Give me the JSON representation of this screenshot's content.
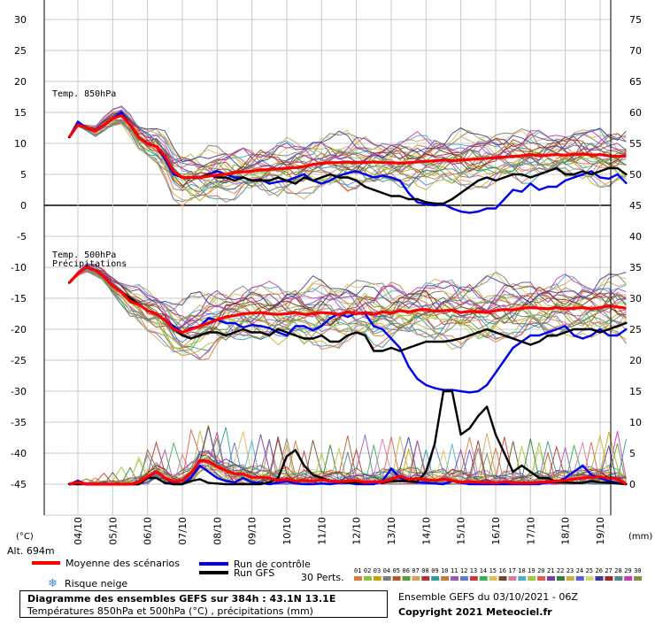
{
  "chart_data": {
    "type": "line",
    "title": "Diagramme des ensembles GEFS sur 384h : 43.1N 13.1E",
    "subtitle": "Températures 850hPa et 500hPa (°C) , précipitations (mm)",
    "run_label": "Ensemble GEFS du 03/10/2021 - 06Z",
    "copyright": "Copyright 2021 Meteociel.fr",
    "altitude": "Alt. 694m",
    "left_unit": "(°C)",
    "right_unit": "(mm)",
    "panel_labels": {
      "t850": "Temp. 850hPa",
      "t500": "Temp. 500hPa",
      "precip": "Précipitations"
    },
    "left_ticks": [
      30,
      25,
      20,
      15,
      10,
      5,
      0,
      -5,
      -10,
      -15,
      -20,
      -25,
      -30,
      -35,
      -40,
      -45
    ],
    "right_ticks": [
      75,
      70,
      65,
      60,
      55,
      50,
      45,
      40,
      35,
      30,
      25,
      20,
      15,
      10,
      5,
      0
    ],
    "x_categories": [
      "04/10",
      "05/10",
      "06/10",
      "07/10",
      "08/10",
      "09/10",
      "10/10",
      "11/10",
      "12/10",
      "13/10",
      "14/10",
      "15/10",
      "16/10",
      "17/10",
      "18/10",
      "19/10"
    ],
    "ylim_temp": [
      -45,
      30
    ],
    "ylim_precip_mm": [
      0,
      75
    ],
    "x_start_day": 3.75,
    "step_hours": 6,
    "legend": {
      "mean": "Moyenne des scénarios",
      "control": "Run de contrôle",
      "gfs": "Run GFS",
      "snow": "Risque neige",
      "perts": "30 Perts.",
      "pert_numbers": [
        "01",
        "02",
        "03",
        "04",
        "05",
        "06",
        "07",
        "08",
        "09",
        "10",
        "11",
        "12",
        "13",
        "14",
        "15",
        "16",
        "17",
        "18",
        "19",
        "20",
        "21",
        "22",
        "23",
        "24",
        "25",
        "26",
        "27",
        "28",
        "29",
        "30"
      ],
      "pert_colors": [
        "#e07a3c",
        "#8fbf3f",
        "#c8a400",
        "#7a7a7a",
        "#b05a2a",
        "#5a9b3a",
        "#d4a05a",
        "#b03030",
        "#2a9a9a",
        "#c87a3a",
        "#9a5ab0",
        "#5a7ad4",
        "#c83a3a",
        "#3ab05a",
        "#e0c050",
        "#6a4a2a",
        "#d47aa0",
        "#4ab0c8",
        "#a0c83a",
        "#e05a5a",
        "#7a3a9a",
        "#3a7a3a",
        "#c8b03a",
        "#5a5ad4",
        "#d4d47a",
        "#3a3a9a",
        "#9a2a2a",
        "#4a8a8a",
        "#c83ab0",
        "#8a8a4a"
      ]
    },
    "series": [
      {
        "name": "Moyenne des scénarios",
        "role": "mean",
        "color": "#ff0000",
        "t850": [
          11,
          13,
          12.5,
          12,
          13,
          14,
          14.5,
          13,
          11,
          10,
          9.5,
          8,
          5.5,
          4.5,
          4.5,
          4.5,
          4.7,
          4.9,
          5,
          5.3,
          5.4,
          5.5,
          5.7,
          5.8,
          5.9,
          6,
          6.1,
          6.3,
          6.6,
          6.8,
          6.9,
          6.9,
          7,
          6.9,
          6.9,
          7,
          6.9,
          6.9,
          6.8,
          6.9,
          7,
          7.1,
          7.2,
          7.3,
          7.2,
          7.3,
          7.4,
          7.5,
          7.6,
          7.7,
          7.8,
          7.9,
          8,
          8.2,
          8,
          8.1,
          8.2,
          8.1,
          8.2,
          8.3,
          8.1,
          8.2,
          8,
          7.9,
          8
        ],
        "t500": [
          -12.5,
          -11,
          -10,
          -10.5,
          -11.5,
          -13,
          -14,
          -15.5,
          -16,
          -17,
          -17.5,
          -18.5,
          -20,
          -20.5,
          -20,
          -19.5,
          -19,
          -18.5,
          -18,
          -17.8,
          -17.5,
          -17.4,
          -17.3,
          -17.5,
          -17.6,
          -17.5,
          -17.3,
          -17.6,
          -17.5,
          -17.3,
          -17.4,
          -17.6,
          -17.2,
          -17.5,
          -17.3,
          -17.6,
          -17.2,
          -17.4,
          -17,
          -17.2,
          -16.9,
          -16.8,
          -17.1,
          -17,
          -16.9,
          -17.3,
          -17.1,
          -17.2,
          -17.3,
          -17,
          -16.8,
          -16.9,
          -16.6,
          -16.5,
          -16.6,
          -16.7,
          -16.5,
          -16.7,
          -16.6,
          -16.5,
          -16.7,
          -16.5,
          -16.2,
          -16.4,
          -16.6
        ],
        "precip": [
          0,
          0.3,
          0,
          0,
          0,
          0,
          0,
          0,
          0.3,
          1.2,
          2,
          1,
          0.4,
          0.6,
          1.8,
          3.8,
          3.7,
          2.8,
          2.2,
          1.7,
          1.6,
          1.1,
          1.1,
          1,
          0.6,
          0.8,
          0.5,
          0.6,
          0.5,
          0.7,
          0.5,
          0.4,
          0.5,
          0.6,
          0.3,
          0.4,
          0.4,
          0.8,
          1.3,
          0.8,
          0.9,
          0.7,
          0.6,
          0.8,
          0.6,
          0.3,
          0.4,
          0.3,
          0.3,
          0.2,
          0.4,
          0.2,
          0.2,
          0.2,
          0.3,
          0.4,
          0.5,
          0.6,
          0.8,
          1,
          1.1,
          1.2,
          1,
          0.8,
          0
        ]
      },
      {
        "name": "Run de contrôle",
        "role": "control",
        "color": "#0000ee",
        "t850": [
          11,
          13.5,
          12.5,
          12,
          13,
          14,
          15,
          13,
          11,
          10,
          9.5,
          7.5,
          5,
          4.5,
          4.5,
          4.5,
          5,
          5.5,
          5,
          4.5,
          4.5,
          4,
          4.2,
          3.5,
          3.8,
          4,
          4.5,
          5,
          4,
          3.5,
          4,
          4.8,
          5.2,
          5.5,
          5,
          4.5,
          4.8,
          4.5,
          4,
          2,
          0.5,
          0.2,
          0,
          0.2,
          -0.5,
          -1,
          -1.2,
          -1,
          -0.5,
          -0.5,
          1,
          2.5,
          2.2,
          3.5,
          2.5,
          3,
          3,
          4,
          4.5,
          5,
          5.5,
          4.5,
          4.3,
          5,
          3.6
        ],
        "t500": [
          -12.5,
          -11,
          -10,
          -10.5,
          -11.5,
          -13,
          -14,
          -15,
          -16,
          -17,
          -17.5,
          -18.5,
          -19.5,
          -20.5,
          -19.8,
          -19.5,
          -18.2,
          -18.5,
          -19,
          -19,
          -19.7,
          -19.3,
          -19.5,
          -19.8,
          -20.5,
          -21,
          -19.5,
          -19.5,
          -20.2,
          -19.5,
          -18.2,
          -17.5,
          -18,
          -17.4,
          -17.5,
          -19.5,
          -20,
          -21.5,
          -23,
          -26,
          -28,
          -29,
          -29.5,
          -29.8,
          -29.8,
          -30,
          -30.2,
          -30,
          -29,
          -27,
          -25,
          -23,
          -22,
          -21,
          -21,
          -20.5,
          -20,
          -19.5,
          -21,
          -21.5,
          -21,
          -20,
          -21,
          -21,
          -20
        ],
        "precip": [
          0,
          0.5,
          0,
          0,
          0,
          0,
          0,
          0,
          0,
          1,
          2,
          1,
          0,
          0,
          1,
          3,
          2,
          1,
          0.5,
          0.3,
          1,
          0.3,
          0.2,
          0,
          0.2,
          0.5,
          0.1,
          0,
          0,
          0.1,
          0,
          0.2,
          0.2,
          0,
          0,
          0,
          0.5,
          2.5,
          1,
          0.5,
          0.3,
          0.2,
          0.1,
          0,
          0.5,
          0.2,
          0,
          0,
          0,
          0,
          0,
          0,
          0,
          0,
          0,
          0.3,
          0.3,
          1,
          2,
          3,
          1.5,
          1,
          0.5,
          0.2,
          0
        ]
      },
      {
        "name": "Run GFS",
        "role": "gfs",
        "color": "#000000",
        "t850": [
          11,
          13,
          12.5,
          12,
          13,
          14,
          14.5,
          13,
          11,
          10,
          9.5,
          8,
          5.5,
          4.5,
          4.5,
          4.5,
          5,
          4.5,
          4.5,
          4,
          4.5,
          4,
          4,
          4,
          4.5,
          4,
          3.5,
          4.5,
          4,
          4.5,
          5,
          4.5,
          4.5,
          4,
          3,
          2.5,
          2,
          1.5,
          1.5,
          1,
          1,
          0.5,
          0.3,
          0.3,
          1,
          2,
          3,
          4,
          4.5,
          4,
          4.5,
          5,
          5,
          4.5,
          5,
          5.5,
          6,
          5,
          5,
          5.5,
          5,
          5.5,
          6,
          6,
          5
        ],
        "t500": [
          -12.5,
          -11,
          -10,
          -10.5,
          -11.5,
          -13,
          -14,
          -15,
          -16,
          -17,
          -17.5,
          -18.5,
          -20,
          -21,
          -21.5,
          -21,
          -20.5,
          -20.5,
          -21,
          -20.5,
          -20,
          -20.5,
          -20.5,
          -21,
          -20,
          -20.5,
          -21,
          -21.5,
          -21.5,
          -21,
          -22,
          -22,
          -21,
          -20.5,
          -21,
          -23.5,
          -23.5,
          -23,
          -23.5,
          -23,
          -22.5,
          -22,
          -22,
          -22,
          -21.8,
          -21.5,
          -21,
          -20.5,
          -20,
          -20.5,
          -21,
          -21.5,
          -22,
          -22.5,
          -22,
          -21,
          -21,
          -20.5,
          -20,
          -20,
          -20,
          -20.5,
          -20,
          -19.5,
          -19
        ],
        "precip": [
          0,
          0,
          0,
          0,
          0,
          0,
          0,
          0,
          0,
          1,
          1,
          0.2,
          0,
          0,
          0.5,
          0.8,
          0.2,
          0.1,
          0,
          0,
          0,
          0,
          0,
          0.3,
          1,
          4.5,
          5.5,
          3,
          1.5,
          1,
          0.5,
          0.4,
          0.3,
          0.2,
          0.2,
          0.5,
          0.2,
          0.5,
          0.5,
          0.5,
          0.4,
          2,
          6.5,
          15,
          15,
          8,
          9,
          11,
          12.5,
          8,
          5,
          2,
          3,
          2,
          1,
          1,
          0.3,
          0.3,
          0.2,
          0.2,
          0.5,
          0.3,
          0.2,
          0.1,
          0
        ]
      }
    ]
  }
}
